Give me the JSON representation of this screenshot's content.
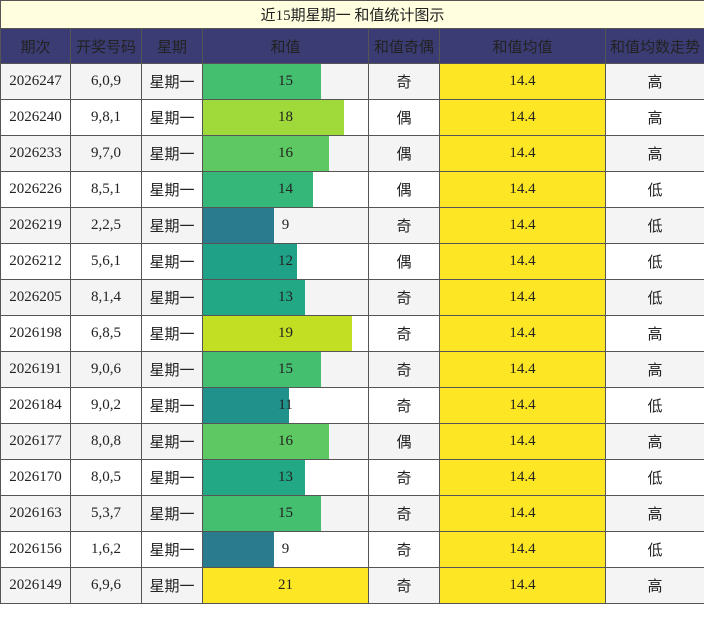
{
  "title": "近15期星期一 和值统计图示",
  "headers": [
    "期次",
    "开奖号码",
    "星期",
    "和值",
    "和值奇偶",
    "和值均值",
    "和值均数走势"
  ],
  "chart_data": {
    "type": "table",
    "title": "近15期星期一 和值统计图示",
    "columns": [
      "期次",
      "开奖号码",
      "星期",
      "和值",
      "和值奇偶",
      "和值均值",
      "和值均数走势"
    ],
    "bar_column": "和值",
    "value_range": [
      0,
      21
    ],
    "average": "14.4",
    "rows": [
      {
        "issue": "2026247",
        "numbers": "6,0,9",
        "weekday": "星期一",
        "sum": 15,
        "parity": "奇",
        "avg": "14.4",
        "trend": "高"
      },
      {
        "issue": "2026240",
        "numbers": "9,8,1",
        "weekday": "星期一",
        "sum": 18,
        "parity": "偶",
        "avg": "14.4",
        "trend": "高"
      },
      {
        "issue": "2026233",
        "numbers": "9,7,0",
        "weekday": "星期一",
        "sum": 16,
        "parity": "偶",
        "avg": "14.4",
        "trend": "高"
      },
      {
        "issue": "2026226",
        "numbers": "8,5,1",
        "weekday": "星期一",
        "sum": 14,
        "parity": "偶",
        "avg": "14.4",
        "trend": "低"
      },
      {
        "issue": "2026219",
        "numbers": "2,2,5",
        "weekday": "星期一",
        "sum": 9,
        "parity": "奇",
        "avg": "14.4",
        "trend": "低"
      },
      {
        "issue": "2026212",
        "numbers": "5,6,1",
        "weekday": "星期一",
        "sum": 12,
        "parity": "偶",
        "avg": "14.4",
        "trend": "低"
      },
      {
        "issue": "2026205",
        "numbers": "8,1,4",
        "weekday": "星期一",
        "sum": 13,
        "parity": "奇",
        "avg": "14.4",
        "trend": "低"
      },
      {
        "issue": "2026198",
        "numbers": "6,8,5",
        "weekday": "星期一",
        "sum": 19,
        "parity": "奇",
        "avg": "14.4",
        "trend": "高"
      },
      {
        "issue": "2026191",
        "numbers": "9,0,6",
        "weekday": "星期一",
        "sum": 15,
        "parity": "奇",
        "avg": "14.4",
        "trend": "高"
      },
      {
        "issue": "2026184",
        "numbers": "9,0,2",
        "weekday": "星期一",
        "sum": 11,
        "parity": "奇",
        "avg": "14.4",
        "trend": "低"
      },
      {
        "issue": "2026177",
        "numbers": "8,0,8",
        "weekday": "星期一",
        "sum": 16,
        "parity": "偶",
        "avg": "14.4",
        "trend": "高"
      },
      {
        "issue": "2026170",
        "numbers": "8,0,5",
        "weekday": "星期一",
        "sum": 13,
        "parity": "奇",
        "avg": "14.4",
        "trend": "低"
      },
      {
        "issue": "2026163",
        "numbers": "5,3,7",
        "weekday": "星期一",
        "sum": 15,
        "parity": "奇",
        "avg": "14.4",
        "trend": "高"
      },
      {
        "issue": "2026156",
        "numbers": "1,6,2",
        "weekday": "星期一",
        "sum": 9,
        "parity": "奇",
        "avg": "14.4",
        "trend": "低"
      },
      {
        "issue": "2026149",
        "numbers": "6,9,6",
        "weekday": "星期一",
        "sum": 21,
        "parity": "奇",
        "avg": "14.4",
        "trend": "高"
      }
    ]
  },
  "colors": {
    "header_bg": "#3b3c74",
    "title_bg": "#ffffe0",
    "title_text": "#2a8a2a",
    "average_fill": "#fde725",
    "bar_scale": {
      "9": "#2a7b8e",
      "11": "#21918c",
      "12": "#1fa187",
      "13": "#22a884",
      "14": "#35b779",
      "15": "#44bf70",
      "16": "#5ec962",
      "18": "#9fda3a",
      "19": "#c2df23",
      "21": "#fde725"
    }
  }
}
